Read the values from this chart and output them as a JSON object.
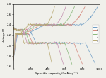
{
  "xlabel": "Specific capacity/(mAh·g⁻¹)",
  "ylabel": "Voltage/V",
  "xlim": [
    0,
    1000
  ],
  "ylim": [
    1.6,
    2.8
  ],
  "xticks": [
    0,
    200,
    400,
    600,
    800,
    1000
  ],
  "yticks": [
    1.6,
    1.8,
    2.0,
    2.2,
    2.4,
    2.6,
    2.8
  ],
  "legend_labels": [
    "1",
    "2",
    "3",
    "4",
    "5"
  ],
  "colors": [
    "#6b9bc4",
    "#d4857a",
    "#88b87a",
    "#c490b0",
    "#b8a870"
  ],
  "background": "#f0f0eb",
  "discharge_caps": [
    950,
    800,
    680,
    580,
    450
  ],
  "charge_caps": [
    980,
    830,
    710,
    610,
    480
  ]
}
